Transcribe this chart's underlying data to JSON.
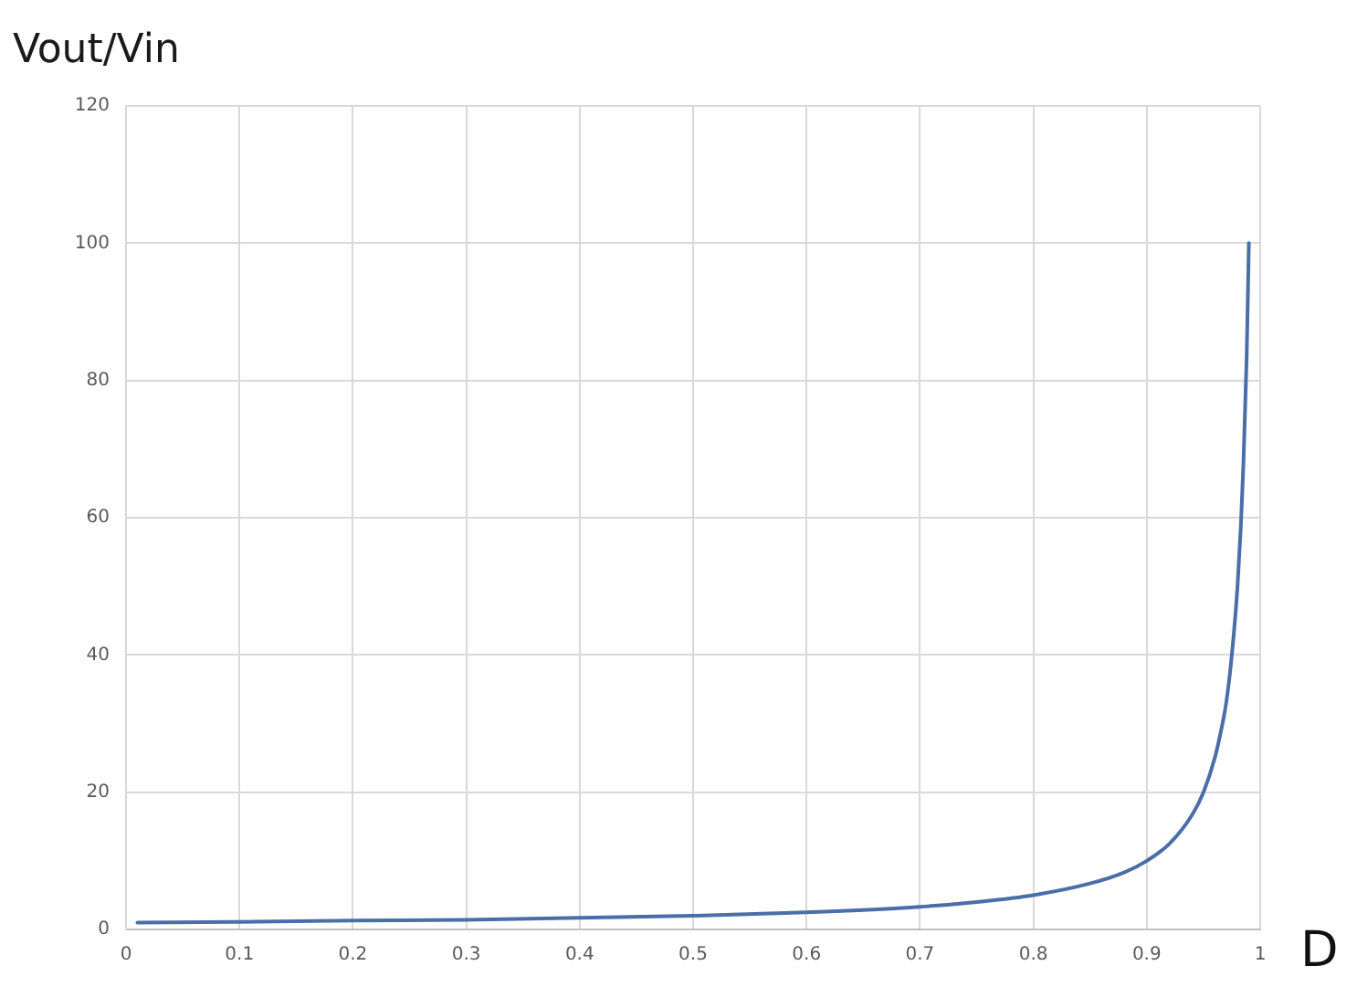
{
  "chart_data": {
    "type": "line",
    "xlabel": "D",
    "ylabel": "Vout/Vin",
    "x": [
      0.01,
      0.1,
      0.2,
      0.3,
      0.4,
      0.5,
      0.6,
      0.7,
      0.75,
      0.8,
      0.85,
      0.88,
      0.9,
      0.92,
      0.94,
      0.95,
      0.96,
      0.965,
      0.97,
      0.975,
      0.98,
      0.983,
      0.985,
      0.988,
      0.99
    ],
    "series": [
      {
        "color": "#4a6ea8",
        "values": [
          1.0,
          1.1,
          1.3,
          1.4,
          1.7,
          2.0,
          2.5,
          3.3,
          4.0,
          5.0,
          6.7,
          8.3,
          10.0,
          12.5,
          16.7,
          20.0,
          25.0,
          28.6,
          33.0,
          40.0,
          50.0,
          59.0,
          67.0,
          83.0,
          100.0
        ]
      }
    ],
    "xlim": [
      0,
      1
    ],
    "xticks": [
      0,
      0.1,
      0.2,
      0.3,
      0.4,
      0.5,
      0.6,
      0.7,
      0.8,
      0.9,
      1
    ],
    "ylim": [
      0,
      120
    ],
    "yticks": [
      0,
      20,
      40,
      60,
      80,
      100,
      120
    ],
    "grid": true,
    "legend": false
  }
}
